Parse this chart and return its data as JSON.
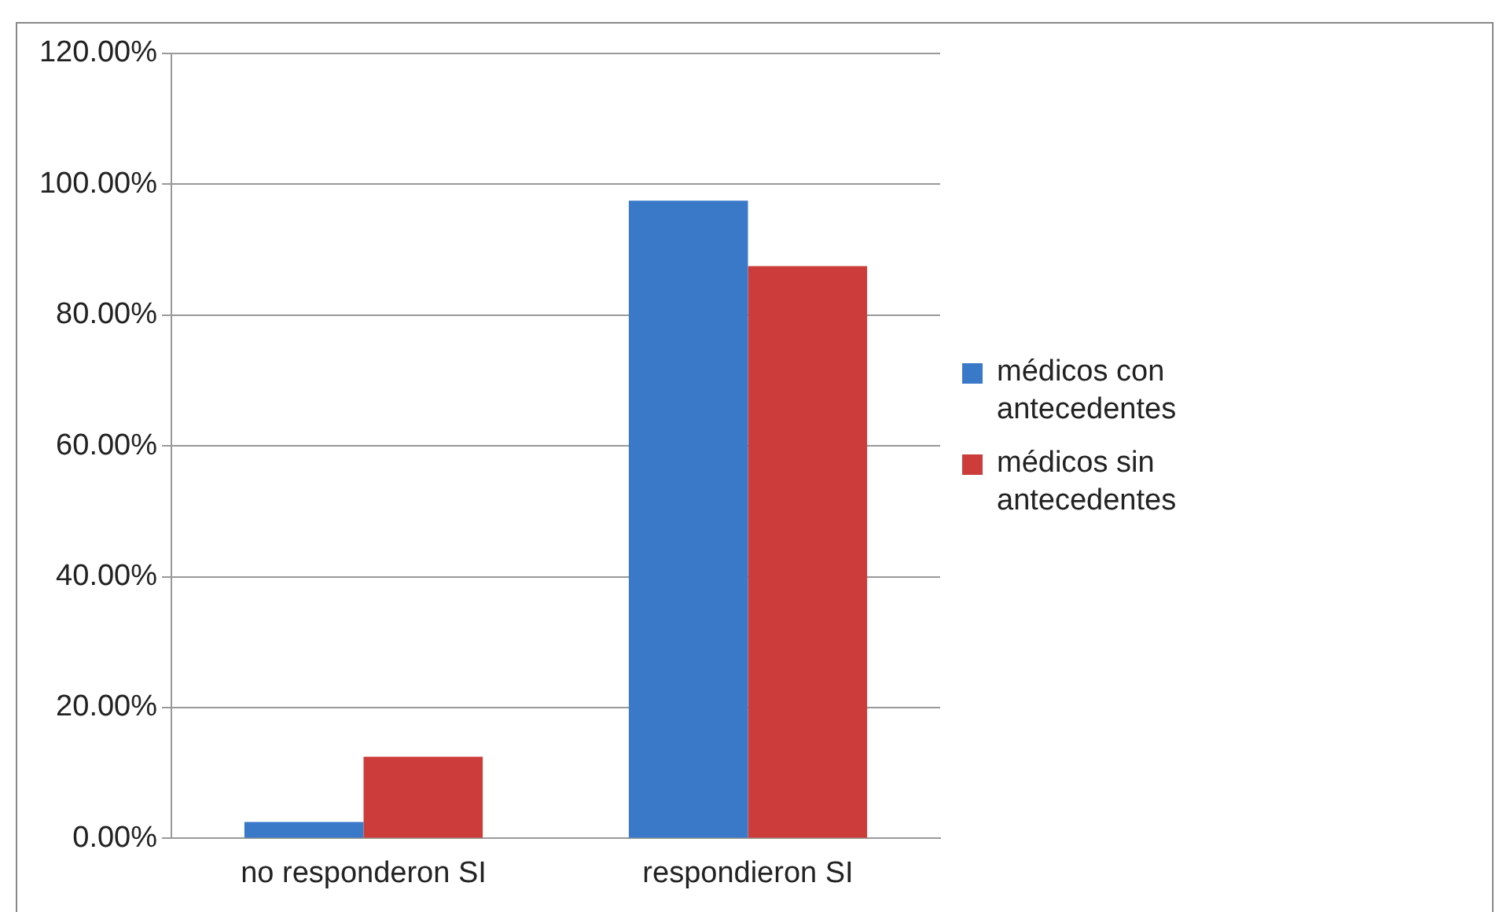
{
  "chart_data": {
    "type": "bar",
    "categories": [
      "no responderon SI",
      "respondieron SI"
    ],
    "series": [
      {
        "name": "médicos con antecedentes",
        "color": "#3a78c8",
        "values": [
          2.5,
          97.5
        ]
      },
      {
        "name": "médicos sin antecedentes",
        "color": "#cc3c3a",
        "values": [
          12.5,
          87.5
        ]
      }
    ],
    "ylim": [
      0,
      120
    ],
    "yticks": [
      {
        "value": 0,
        "label": "0.00%"
      },
      {
        "value": 20,
        "label": "20.00%"
      },
      {
        "value": 40,
        "label": "40.00%"
      },
      {
        "value": 60,
        "label": "60.00%"
      },
      {
        "value": 80,
        "label": "80.00%"
      },
      {
        "value": 100,
        "label": "100.00%"
      },
      {
        "value": 120,
        "label": "120.00%"
      }
    ],
    "grid": "y",
    "legend": "right"
  }
}
